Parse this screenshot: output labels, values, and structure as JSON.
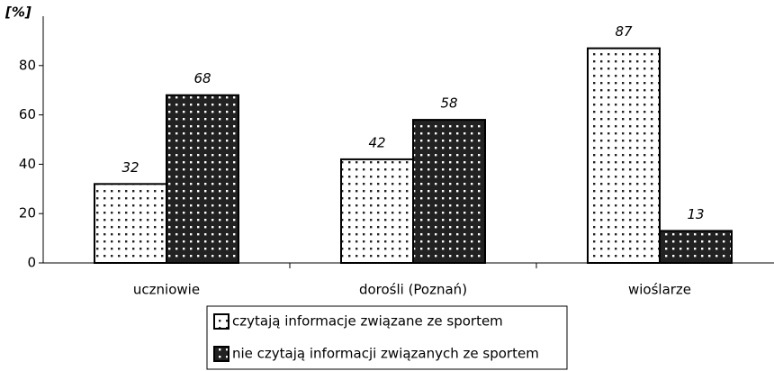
{
  "chart_data": {
    "type": "bar",
    "ylabel": "[%]",
    "categories": [
      "uczniowie",
      "dorośli (Poznań)",
      "wioślarze"
    ],
    "series": [
      {
        "name": "czytają informacje związane ze sportem",
        "color": "#ffffff",
        "values": [
          32,
          42,
          87
        ]
      },
      {
        "name": "nie czytają informacji związanych ze sportem",
        "color": "#222222",
        "values": [
          68,
          58,
          13
        ]
      }
    ],
    "ylim": [
      0,
      100
    ],
    "yticks": [
      0,
      20,
      40,
      60,
      80
    ],
    "grid": false,
    "legend": "bottom"
  }
}
